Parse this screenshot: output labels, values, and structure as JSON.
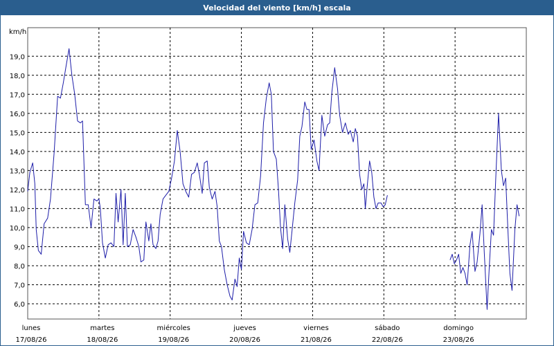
{
  "window": {
    "title": "Velocidad del viento [km/h] escala"
  },
  "chart_data": {
    "type": "line",
    "title": "Velocidad del viento [km/h] escala",
    "ylabel": "km/h",
    "ylim": [
      5.2,
      20.5
    ],
    "y_ticks": [
      "6,0",
      "7,0",
      "8,0",
      "9,0",
      "10,0",
      "11,0",
      "12,0",
      "13,0",
      "14,0",
      "15,0",
      "16,0",
      "17,0",
      "18,0",
      "19,0"
    ],
    "y_tick_values": [
      6,
      7,
      8,
      9,
      10,
      11,
      12,
      13,
      14,
      15,
      16,
      17,
      18,
      19
    ],
    "xlim": [
      0,
      7
    ],
    "days": [
      {
        "weekday": "lunes",
        "date": "17/08/26"
      },
      {
        "weekday": "martes",
        "date": "18/08/26"
      },
      {
        "weekday": "miércoles",
        "date": "19/08/26"
      },
      {
        "weekday": "jueves",
        "date": "20/08/26"
      },
      {
        "weekday": "viernes",
        "date": "21/08/26"
      },
      {
        "weekday": "sábado",
        "date": "22/08/26"
      },
      {
        "weekday": "domingo",
        "date": "23/08/26"
      }
    ],
    "grid": true,
    "line_color": "#1c1ca8",
    "series": [
      {
        "segments": [
          [
            [
              0.0,
              11.9
            ],
            [
              0.03,
              12.9
            ],
            [
              0.07,
              13.4
            ],
            [
              0.1,
              12.3
            ],
            [
              0.12,
              9.9
            ],
            [
              0.15,
              8.8
            ],
            [
              0.19,
              8.6
            ],
            [
              0.23,
              10.2
            ],
            [
              0.28,
              10.5
            ],
            [
              0.32,
              11.5
            ],
            [
              0.37,
              13.9
            ],
            [
              0.42,
              16.9
            ],
            [
              0.46,
              16.8
            ],
            [
              0.5,
              17.6
            ],
            [
              0.54,
              18.5
            ],
            [
              0.58,
              19.4
            ],
            [
              0.62,
              18.0
            ],
            [
              0.66,
              17.0
            ],
            [
              0.7,
              15.6
            ],
            [
              0.74,
              15.5
            ],
            [
              0.77,
              15.6
            ],
            [
              0.81,
              11.2
            ],
            [
              0.85,
              11.2
            ],
            [
              0.89,
              10.0
            ],
            [
              0.93,
              11.5
            ],
            [
              0.97,
              11.4
            ],
            [
              1.0,
              11.5
            ],
            [
              1.02,
              11.0
            ],
            [
              1.05,
              9.2
            ],
            [
              1.09,
              8.4
            ],
            [
              1.13,
              9.1
            ],
            [
              1.17,
              9.2
            ],
            [
              1.21,
              9.0
            ],
            [
              1.24,
              11.8
            ],
            [
              1.27,
              10.3
            ],
            [
              1.31,
              12.0
            ],
            [
              1.34,
              9.1
            ],
            [
              1.37,
              11.8
            ],
            [
              1.4,
              9.0
            ],
            [
              1.44,
              9.1
            ],
            [
              1.48,
              9.9
            ],
            [
              1.52,
              9.5
            ],
            [
              1.56,
              9.0
            ],
            [
              1.59,
              8.2
            ],
            [
              1.63,
              8.3
            ],
            [
              1.66,
              10.3
            ],
            [
              1.7,
              9.3
            ],
            [
              1.73,
              10.2
            ],
            [
              1.76,
              9.1
            ],
            [
              1.8,
              8.9
            ],
            [
              1.83,
              9.3
            ],
            [
              1.86,
              10.7
            ],
            [
              1.9,
              11.5
            ],
            [
              1.94,
              11.7
            ],
            [
              1.98,
              11.9
            ],
            [
              2.02,
              12.6
            ],
            [
              2.06,
              13.5
            ],
            [
              2.1,
              15.1
            ],
            [
              2.14,
              14.0
            ],
            [
              2.18,
              12.3
            ],
            [
              2.22,
              11.9
            ],
            [
              2.26,
              11.6
            ],
            [
              2.3,
              12.8
            ],
            [
              2.34,
              12.9
            ],
            [
              2.38,
              13.4
            ],
            [
              2.41,
              12.8
            ],
            [
              2.45,
              11.8
            ],
            [
              2.48,
              13.4
            ],
            [
              2.52,
              13.5
            ],
            [
              2.55,
              12.1
            ],
            [
              2.59,
              11.5
            ],
            [
              2.63,
              11.9
            ],
            [
              2.66,
              11.1
            ],
            [
              2.69,
              9.3
            ],
            [
              2.72,
              9.0
            ],
            [
              2.76,
              7.8
            ],
            [
              2.8,
              7.0
            ],
            [
              2.84,
              6.4
            ],
            [
              2.87,
              6.2
            ],
            [
              2.91,
              7.3
            ],
            [
              2.94,
              6.9
            ],
            [
              2.97,
              8.4
            ],
            [
              3.0,
              7.8
            ],
            [
              3.03,
              9.8
            ],
            [
              3.07,
              9.2
            ],
            [
              3.11,
              9.1
            ],
            [
              3.15,
              9.9
            ],
            [
              3.19,
              11.2
            ],
            [
              3.23,
              11.3
            ],
            [
              3.27,
              12.7
            ],
            [
              3.31,
              15.5
            ],
            [
              3.35,
              16.8
            ],
            [
              3.39,
              17.6
            ],
            [
              3.42,
              17.0
            ],
            [
              3.45,
              14.0
            ],
            [
              3.49,
              13.6
            ],
            [
              3.52,
              12.0
            ],
            [
              3.55,
              10.0
            ],
            [
              3.58,
              8.9
            ],
            [
              3.61,
              11.2
            ],
            [
              3.65,
              9.4
            ],
            [
              3.68,
              8.7
            ],
            [
              3.71,
              9.8
            ],
            [
              3.75,
              11.3
            ],
            [
              3.79,
              12.5
            ],
            [
              3.82,
              14.8
            ],
            [
              3.85,
              15.3
            ],
            [
              3.89,
              16.6
            ],
            [
              3.92,
              16.2
            ],
            [
              3.95,
              16.2
            ],
            [
              3.98,
              14.1
            ],
            [
              4.02,
              14.6
            ],
            [
              4.06,
              13.5
            ],
            [
              4.09,
              13.0
            ],
            [
              4.13,
              15.9
            ],
            [
              4.17,
              14.8
            ],
            [
              4.21,
              15.4
            ],
            [
              4.24,
              15.5
            ],
            [
              4.27,
              17.1
            ],
            [
              4.31,
              18.4
            ],
            [
              4.35,
              17.3
            ],
            [
              4.38,
              15.9
            ],
            [
              4.42,
              15.0
            ],
            [
              4.46,
              15.5
            ],
            [
              4.5,
              14.9
            ],
            [
              4.53,
              15.1
            ],
            [
              4.57,
              14.5
            ],
            [
              4.6,
              15.2
            ],
            [
              4.63,
              14.8
            ],
            [
              4.66,
              12.8
            ],
            [
              4.69,
              12.0
            ],
            [
              4.72,
              12.3
            ],
            [
              4.74,
              11.0
            ],
            [
              4.77,
              12.3
            ],
            [
              4.8,
              13.5
            ],
            [
              4.83,
              12.9
            ],
            [
              4.86,
              11.6
            ],
            [
              4.89,
              11.0
            ],
            [
              4.92,
              11.3
            ],
            [
              4.96,
              11.3
            ],
            [
              4.99,
              11.1
            ],
            [
              5.02,
              11.2
            ],
            [
              5.05,
              11.7
            ]
          ],
          [
            [
              5.93,
              8.3
            ],
            [
              5.96,
              8.6
            ],
            [
              5.99,
              8.1
            ],
            [
              6.02,
              8.3
            ],
            [
              6.05,
              8.6
            ],
            [
              6.08,
              7.6
            ],
            [
              6.11,
              7.9
            ],
            [
              6.14,
              7.6
            ],
            [
              6.17,
              7.0
            ],
            [
              6.21,
              9.1
            ],
            [
              6.24,
              9.8
            ],
            [
              6.28,
              7.7
            ],
            [
              6.31,
              8.2
            ],
            [
              6.35,
              9.7
            ],
            [
              6.38,
              11.2
            ],
            [
              6.41,
              8.7
            ],
            [
              6.45,
              5.7
            ],
            [
              6.48,
              7.9
            ],
            [
              6.51,
              9.9
            ],
            [
              6.54,
              9.6
            ],
            [
              6.57,
              12.5
            ],
            [
              6.61,
              16.0
            ],
            [
              6.65,
              13.0
            ],
            [
              6.68,
              12.2
            ],
            [
              6.71,
              12.6
            ],
            [
              6.74,
              10.0
            ],
            [
              6.77,
              7.6
            ],
            [
              6.8,
              6.7
            ],
            [
              6.84,
              9.9
            ],
            [
              6.87,
              11.2
            ],
            [
              6.9,
              10.6
            ]
          ]
        ]
      }
    ]
  }
}
